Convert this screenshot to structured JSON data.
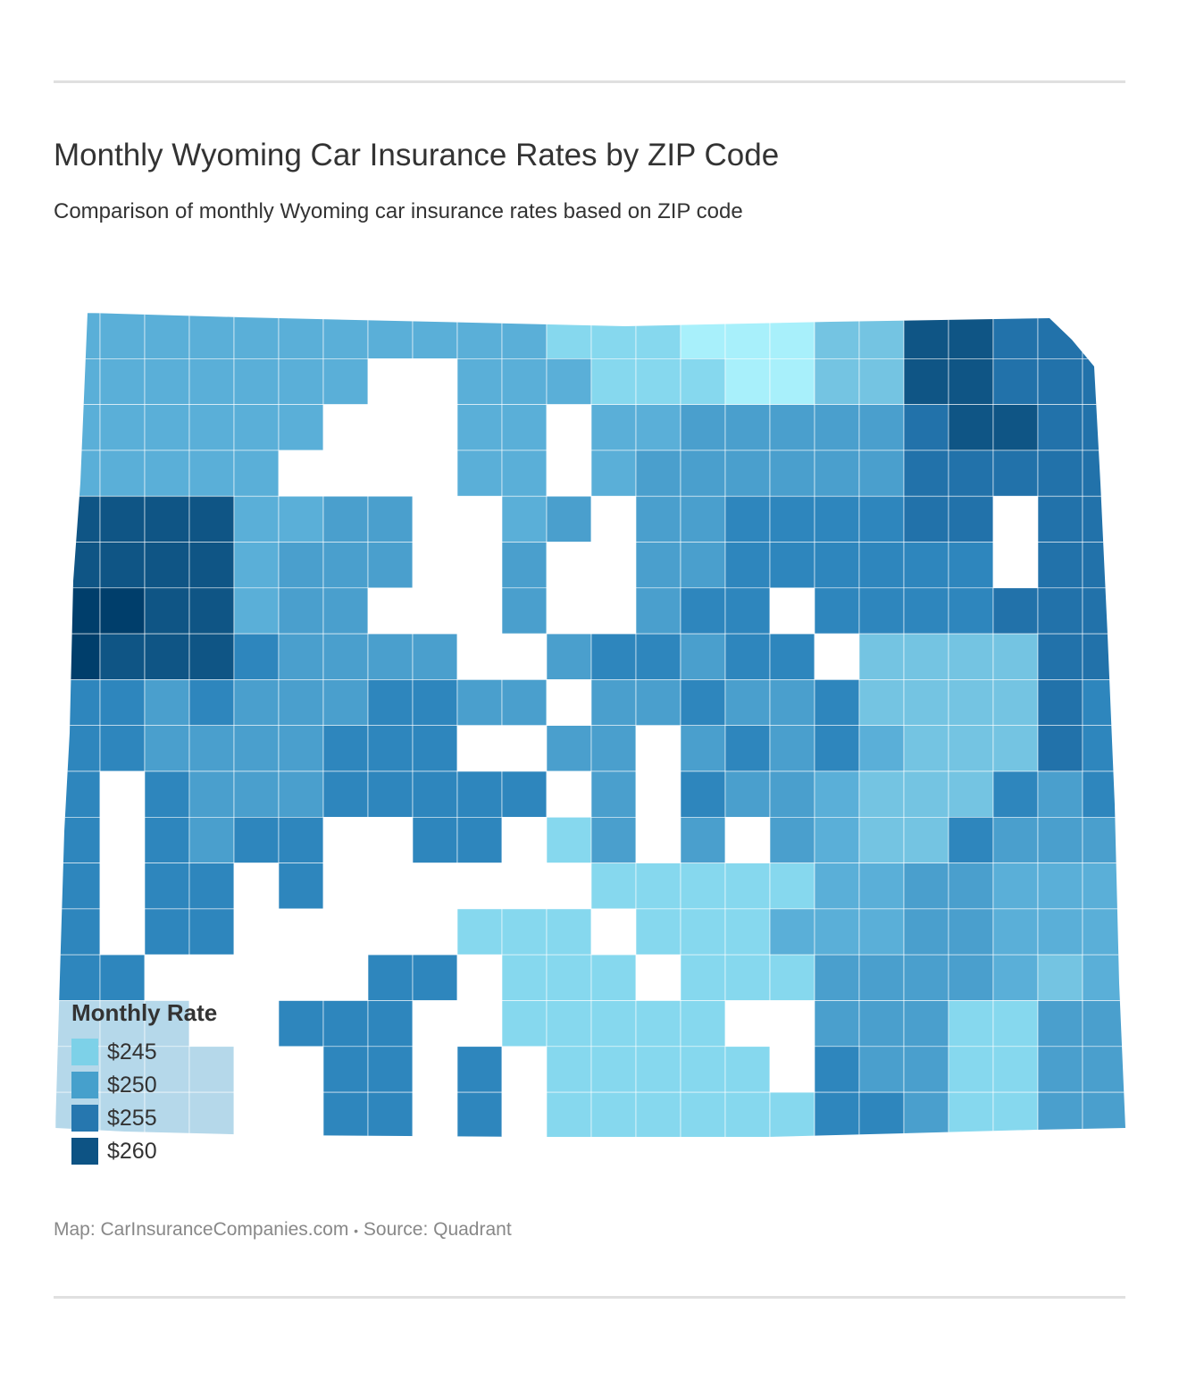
{
  "title": "Monthly Wyoming Car Insurance Rates by ZIP Code",
  "subtitle": "Comparison of monthly Wyoming car insurance rates based on ZIP code",
  "legend": {
    "title": "Monthly Rate",
    "items": [
      {
        "label": "$245",
        "color": "#7dd1e8"
      },
      {
        "label": "$250",
        "color": "#46a0cc"
      },
      {
        "label": "$255",
        "color": "#2677af"
      },
      {
        "label": "$260",
        "color": "#0d5384"
      }
    ]
  },
  "footer": {
    "map_credit": "Map: CarInsuranceCompanies.com",
    "separator": "•",
    "source": "Source: Quadrant"
  },
  "colors": {
    "no_data": "#ffffff",
    "rule": "#e0e0e0"
  }
}
